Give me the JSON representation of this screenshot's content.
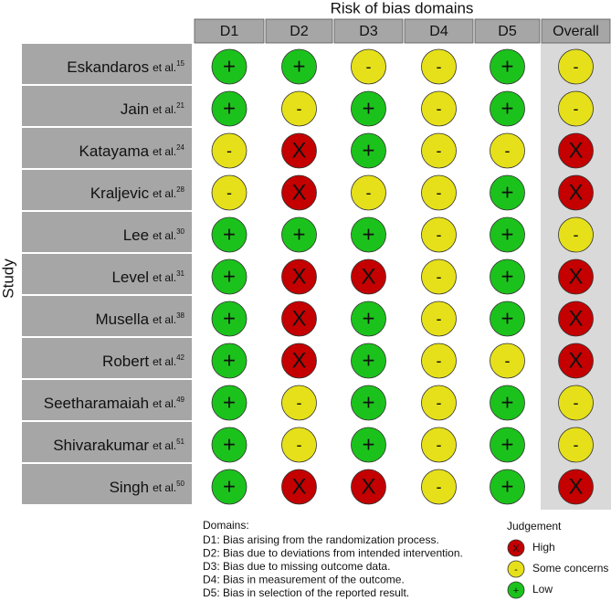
{
  "title": "Risk of bias domains",
  "y_label": "Study",
  "columns": [
    "D1",
    "D2",
    "D3",
    "D4",
    "D5",
    "Overall"
  ],
  "rows": [
    {
      "study": "Eskandaros",
      "suffix": "et al.",
      "ref": "15",
      "judgements": [
        "+",
        "+",
        "-",
        "-",
        "+",
        "-"
      ]
    },
    {
      "study": "Jain",
      "suffix": "et al.",
      "ref": "21",
      "judgements": [
        "+",
        "-",
        "+",
        "-",
        "+",
        "-"
      ]
    },
    {
      "study": "Katayama",
      "suffix": "et al.",
      "ref": "24",
      "judgements": [
        "-",
        "X",
        "+",
        "-",
        "-",
        "X"
      ]
    },
    {
      "study": "Kraljevic",
      "suffix": "et al.",
      "ref": "28",
      "judgements": [
        "-",
        "X",
        "-",
        "-",
        "+",
        "X"
      ]
    },
    {
      "study": "Lee",
      "suffix": "et al.",
      "ref": "30",
      "judgements": [
        "+",
        "+",
        "+",
        "-",
        "+",
        "-"
      ]
    },
    {
      "study": "Level",
      "suffix": "et al.",
      "ref": "31",
      "judgements": [
        "+",
        "X",
        "X",
        "-",
        "+",
        "X"
      ]
    },
    {
      "study": "Musella",
      "suffix": "et al.",
      "ref": "38",
      "judgements": [
        "+",
        "X",
        "+",
        "-",
        "+",
        "X"
      ]
    },
    {
      "study": "Robert",
      "suffix": "et al.",
      "ref": "42",
      "judgements": [
        "+",
        "X",
        "+",
        "-",
        "-",
        "X"
      ]
    },
    {
      "study": "Seetharamaiah",
      "suffix": "et al.",
      "ref": "49",
      "judgements": [
        "+",
        "-",
        "+",
        "-",
        "+",
        "-"
      ]
    },
    {
      "study": "Shivarakumar",
      "suffix": "et al.",
      "ref": "51",
      "judgements": [
        "+",
        "-",
        "+",
        "-",
        "+",
        "-"
      ]
    },
    {
      "study": "Singh",
      "suffix": "et al.",
      "ref": "50",
      "judgements": [
        "+",
        "X",
        "X",
        "-",
        "+",
        "X"
      ]
    }
  ],
  "domains": {
    "title": "Domains:",
    "items": [
      "D1: Bias arising from the randomization process.",
      "D2: Bias due to deviations from intended intervention.",
      "D3: Bias due to missing outcome data.",
      "D4: Bias in measurement of the outcome.",
      "D5: Bias in selection of the reported result."
    ]
  },
  "legend": {
    "title": "Judgement",
    "items": [
      {
        "symbol": "X",
        "label": "High",
        "color": "#c40000"
      },
      {
        "symbol": "-",
        "label": "Some concerns",
        "color": "#e6e01a"
      },
      {
        "symbol": "+",
        "label": "Low",
        "color": "#1cc21c"
      }
    ]
  }
}
